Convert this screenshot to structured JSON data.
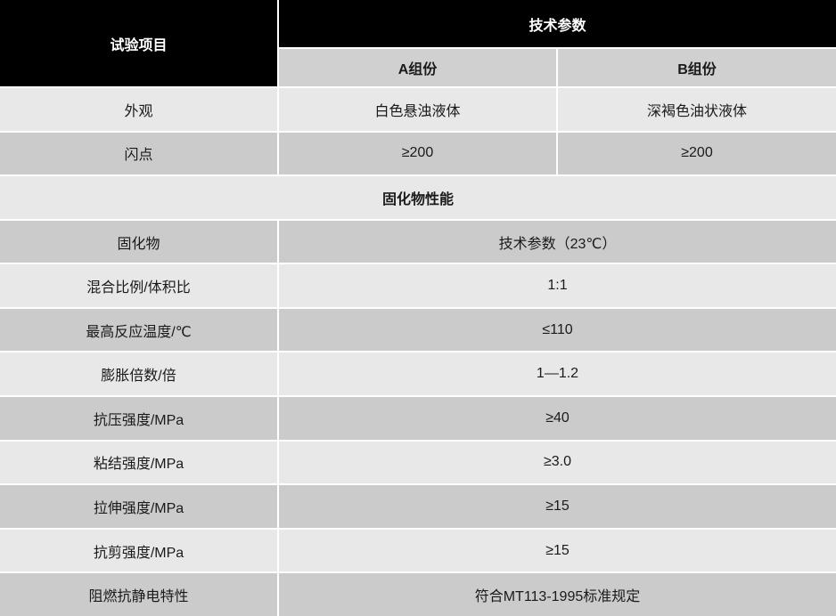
{
  "header": {
    "col_item": "试验项目",
    "col_params": "技术参数",
    "sub_a": "A组份",
    "sub_b": "B组份"
  },
  "rows_ab": [
    {
      "label": "外观",
      "a": "白色悬浊液体",
      "b": "深褐色油状液体"
    },
    {
      "label": "闪点",
      "a": "≥200",
      "b": "≥200"
    }
  ],
  "section_title": "固化物性能",
  "rows_merged": [
    {
      "label": "固化物",
      "value": "技术参数（23℃）"
    },
    {
      "label": "混合比例/体积比",
      "value": "1:1"
    },
    {
      "label": "最高反应温度/℃",
      "value": "≤110"
    },
    {
      "label": "膨胀倍数/倍",
      "value": "1—1.2"
    },
    {
      "label": "抗压强度/MPa",
      "value": "≥40"
    },
    {
      "label": "粘结强度/MPa",
      "value": "≥3.0"
    },
    {
      "label": "拉伸强度/MPa",
      "value": "≥15"
    },
    {
      "label": "抗剪强度/MPa",
      "value": "≥15"
    },
    {
      "label": "阻燃抗静电特性",
      "value": "符合MT113-1995标准规定"
    }
  ],
  "colors": {
    "header_bg": "#000000",
    "header_text": "#ffffff",
    "subheader_bg": "#d0d0d0",
    "row_light": "#e8e8e8",
    "row_dark": "#cbcbcb",
    "text": "#1a1a1a"
  }
}
